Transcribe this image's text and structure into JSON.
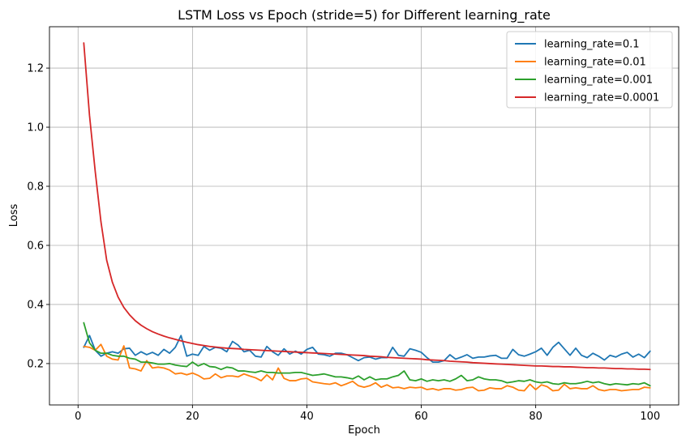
{
  "chart_data": {
    "type": "line",
    "title": "LSTM Loss vs Epoch (stride=5) for Different learning_rate",
    "xlabel": "Epoch",
    "ylabel": "Loss",
    "xlim": [
      -5,
      105
    ],
    "ylim": [
      0.06,
      1.34
    ],
    "xticks": [
      0,
      20,
      40,
      60,
      80,
      100
    ],
    "yticks": [
      0.2,
      0.4,
      0.6,
      0.8,
      1.0,
      1.2
    ],
    "xtick_labels": [
      "0",
      "20",
      "40",
      "60",
      "80",
      "100"
    ],
    "ytick_labels": [
      "0.2",
      "0.4",
      "0.6",
      "0.8",
      "1.0",
      "1.2"
    ],
    "grid": true,
    "legend_position": "top-right",
    "x": [
      1,
      2,
      3,
      4,
      5,
      6,
      7,
      8,
      9,
      10,
      11,
      12,
      13,
      14,
      15,
      16,
      17,
      18,
      19,
      20,
      21,
      22,
      23,
      24,
      25,
      26,
      27,
      28,
      29,
      30,
      31,
      32,
      33,
      34,
      35,
      36,
      37,
      38,
      39,
      40,
      41,
      42,
      43,
      44,
      45,
      46,
      47,
      48,
      49,
      50,
      51,
      52,
      53,
      54,
      55,
      56,
      57,
      58,
      59,
      60,
      61,
      62,
      63,
      64,
      65,
      66,
      67,
      68,
      69,
      70,
      71,
      72,
      73,
      74,
      75,
      76,
      77,
      78,
      79,
      80,
      81,
      82,
      83,
      84,
      85,
      86,
      87,
      88,
      89,
      90,
      91,
      92,
      93,
      94,
      95,
      96,
      97,
      98,
      99,
      100
    ],
    "series": [
      {
        "name": "learning_rate=0.1",
        "color": "#1f77b4",
        "values": [
          0.255,
          0.295,
          0.245,
          0.225,
          0.235,
          0.24,
          0.235,
          0.25,
          0.252,
          0.228,
          0.24,
          0.23,
          0.238,
          0.228,
          0.248,
          0.235,
          0.255,
          0.295,
          0.225,
          0.232,
          0.228,
          0.258,
          0.245,
          0.255,
          0.252,
          0.24,
          0.275,
          0.262,
          0.24,
          0.245,
          0.225,
          0.222,
          0.258,
          0.24,
          0.228,
          0.25,
          0.232,
          0.242,
          0.232,
          0.248,
          0.255,
          0.232,
          0.23,
          0.225,
          0.235,
          0.235,
          0.23,
          0.22,
          0.21,
          0.22,
          0.222,
          0.215,
          0.22,
          0.22,
          0.255,
          0.228,
          0.225,
          0.25,
          0.245,
          0.238,
          0.22,
          0.205,
          0.205,
          0.21,
          0.23,
          0.215,
          0.222,
          0.23,
          0.218,
          0.222,
          0.222,
          0.226,
          0.228,
          0.218,
          0.218,
          0.248,
          0.23,
          0.225,
          0.232,
          0.24,
          0.252,
          0.228,
          0.255,
          0.272,
          0.25,
          0.228,
          0.252,
          0.228,
          0.22,
          0.235,
          0.225,
          0.212,
          0.228,
          0.222,
          0.232,
          0.238,
          0.222,
          0.232,
          0.22,
          0.242
        ]
      },
      {
        "name": "learning_rate=0.01",
        "color": "#ff7f0e",
        "values": [
          0.258,
          0.255,
          0.245,
          0.265,
          0.225,
          0.215,
          0.212,
          0.26,
          0.185,
          0.182,
          0.175,
          0.21,
          0.185,
          0.188,
          0.185,
          0.178,
          0.165,
          0.168,
          0.162,
          0.168,
          0.16,
          0.148,
          0.15,
          0.165,
          0.152,
          0.158,
          0.158,
          0.155,
          0.165,
          0.158,
          0.152,
          0.142,
          0.162,
          0.145,
          0.185,
          0.15,
          0.142,
          0.142,
          0.148,
          0.15,
          0.138,
          0.135,
          0.132,
          0.13,
          0.135,
          0.125,
          0.132,
          0.14,
          0.125,
          0.12,
          0.125,
          0.135,
          0.12,
          0.128,
          0.118,
          0.12,
          0.115,
          0.12,
          0.118,
          0.12,
          0.112,
          0.115,
          0.11,
          0.115,
          0.115,
          0.11,
          0.112,
          0.118,
          0.12,
          0.108,
          0.11,
          0.118,
          0.115,
          0.115,
          0.125,
          0.12,
          0.11,
          0.108,
          0.13,
          0.112,
          0.128,
          0.122,
          0.108,
          0.11,
          0.13,
          0.115,
          0.118,
          0.115,
          0.115,
          0.125,
          0.112,
          0.108,
          0.112,
          0.112,
          0.108,
          0.11,
          0.112,
          0.112,
          0.12,
          0.118
        ]
      },
      {
        "name": "learning_rate=0.001",
        "color": "#2ca02c",
        "values": [
          0.338,
          0.27,
          0.245,
          0.235,
          0.235,
          0.228,
          0.225,
          0.225,
          0.218,
          0.215,
          0.205,
          0.205,
          0.202,
          0.198,
          0.198,
          0.2,
          0.195,
          0.192,
          0.19,
          0.205,
          0.192,
          0.2,
          0.19,
          0.188,
          0.18,
          0.188,
          0.185,
          0.175,
          0.175,
          0.172,
          0.17,
          0.175,
          0.17,
          0.17,
          0.168,
          0.168,
          0.168,
          0.17,
          0.17,
          0.165,
          0.16,
          0.162,
          0.165,
          0.16,
          0.155,
          0.155,
          0.152,
          0.148,
          0.158,
          0.145,
          0.155,
          0.145,
          0.148,
          0.148,
          0.155,
          0.16,
          0.175,
          0.145,
          0.142,
          0.148,
          0.14,
          0.145,
          0.142,
          0.145,
          0.14,
          0.148,
          0.16,
          0.142,
          0.145,
          0.155,
          0.148,
          0.145,
          0.145,
          0.142,
          0.135,
          0.138,
          0.142,
          0.14,
          0.145,
          0.138,
          0.135,
          0.138,
          0.132,
          0.13,
          0.135,
          0.132,
          0.132,
          0.135,
          0.14,
          0.135,
          0.138,
          0.132,
          0.128,
          0.132,
          0.13,
          0.128,
          0.132,
          0.13,
          0.135,
          0.125
        ]
      },
      {
        "name": "learning_rate=0.0001",
        "color": "#d62728",
        "values": [
          1.285,
          1.04,
          0.85,
          0.68,
          0.55,
          0.475,
          0.425,
          0.39,
          0.365,
          0.345,
          0.33,
          0.318,
          0.308,
          0.3,
          0.293,
          0.287,
          0.282,
          0.277,
          0.272,
          0.268,
          0.264,
          0.261,
          0.258,
          0.256,
          0.254,
          0.252,
          0.251,
          0.25,
          0.248,
          0.247,
          0.246,
          0.245,
          0.244,
          0.243,
          0.242,
          0.241,
          0.24,
          0.239,
          0.238,
          0.237,
          0.236,
          0.235,
          0.234,
          0.233,
          0.232,
          0.231,
          0.23,
          0.229,
          0.228,
          0.227,
          0.225,
          0.224,
          0.223,
          0.221,
          0.22,
          0.219,
          0.218,
          0.217,
          0.216,
          0.215,
          0.213,
          0.212,
          0.211,
          0.21,
          0.208,
          0.207,
          0.206,
          0.205,
          0.203,
          0.202,
          0.201,
          0.2,
          0.199,
          0.198,
          0.197,
          0.196,
          0.195,
          0.194,
          0.193,
          0.192,
          0.192,
          0.191,
          0.19,
          0.19,
          0.189,
          0.189,
          0.188,
          0.187,
          0.186,
          0.186,
          0.185,
          0.185,
          0.184,
          0.183,
          0.183,
          0.182,
          0.182,
          0.181,
          0.181,
          0.18
        ]
      }
    ]
  }
}
